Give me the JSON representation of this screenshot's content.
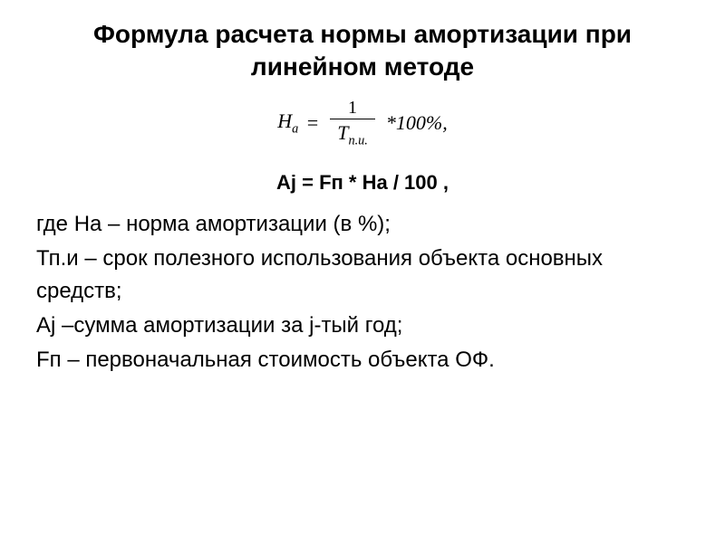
{
  "title": "Формула расчета нормы амортизации при линейном методе",
  "formula_main": {
    "lhs_var": "Н",
    "lhs_sub": "а",
    "equals": "=",
    "numerator": "1",
    "denom_var": "Т",
    "denom_sub": "п.и.",
    "multiply": "*100%,"
  },
  "formula_second": "Аj = Fп * На / 100 ,",
  "definitions": {
    "line1_prefix": "где ",
    "line1_var": "На",
    "line1_text": " – норма амортизации (в %);",
    "line2_var": "Тп.и",
    "line2_text": " – срок полезного использования объекта основных средств;",
    "line3_var": "Аj",
    "line3_text": " –сумма амортизации за j-тый год;",
    "line4_var": "Fп",
    "line4_text": " – первоначальная стоимость объекта ОФ."
  },
  "colors": {
    "background": "#ffffff",
    "text": "#000000"
  },
  "typography": {
    "title_fontsize": 28,
    "body_fontsize": 24,
    "formula_fontsize": 22
  }
}
